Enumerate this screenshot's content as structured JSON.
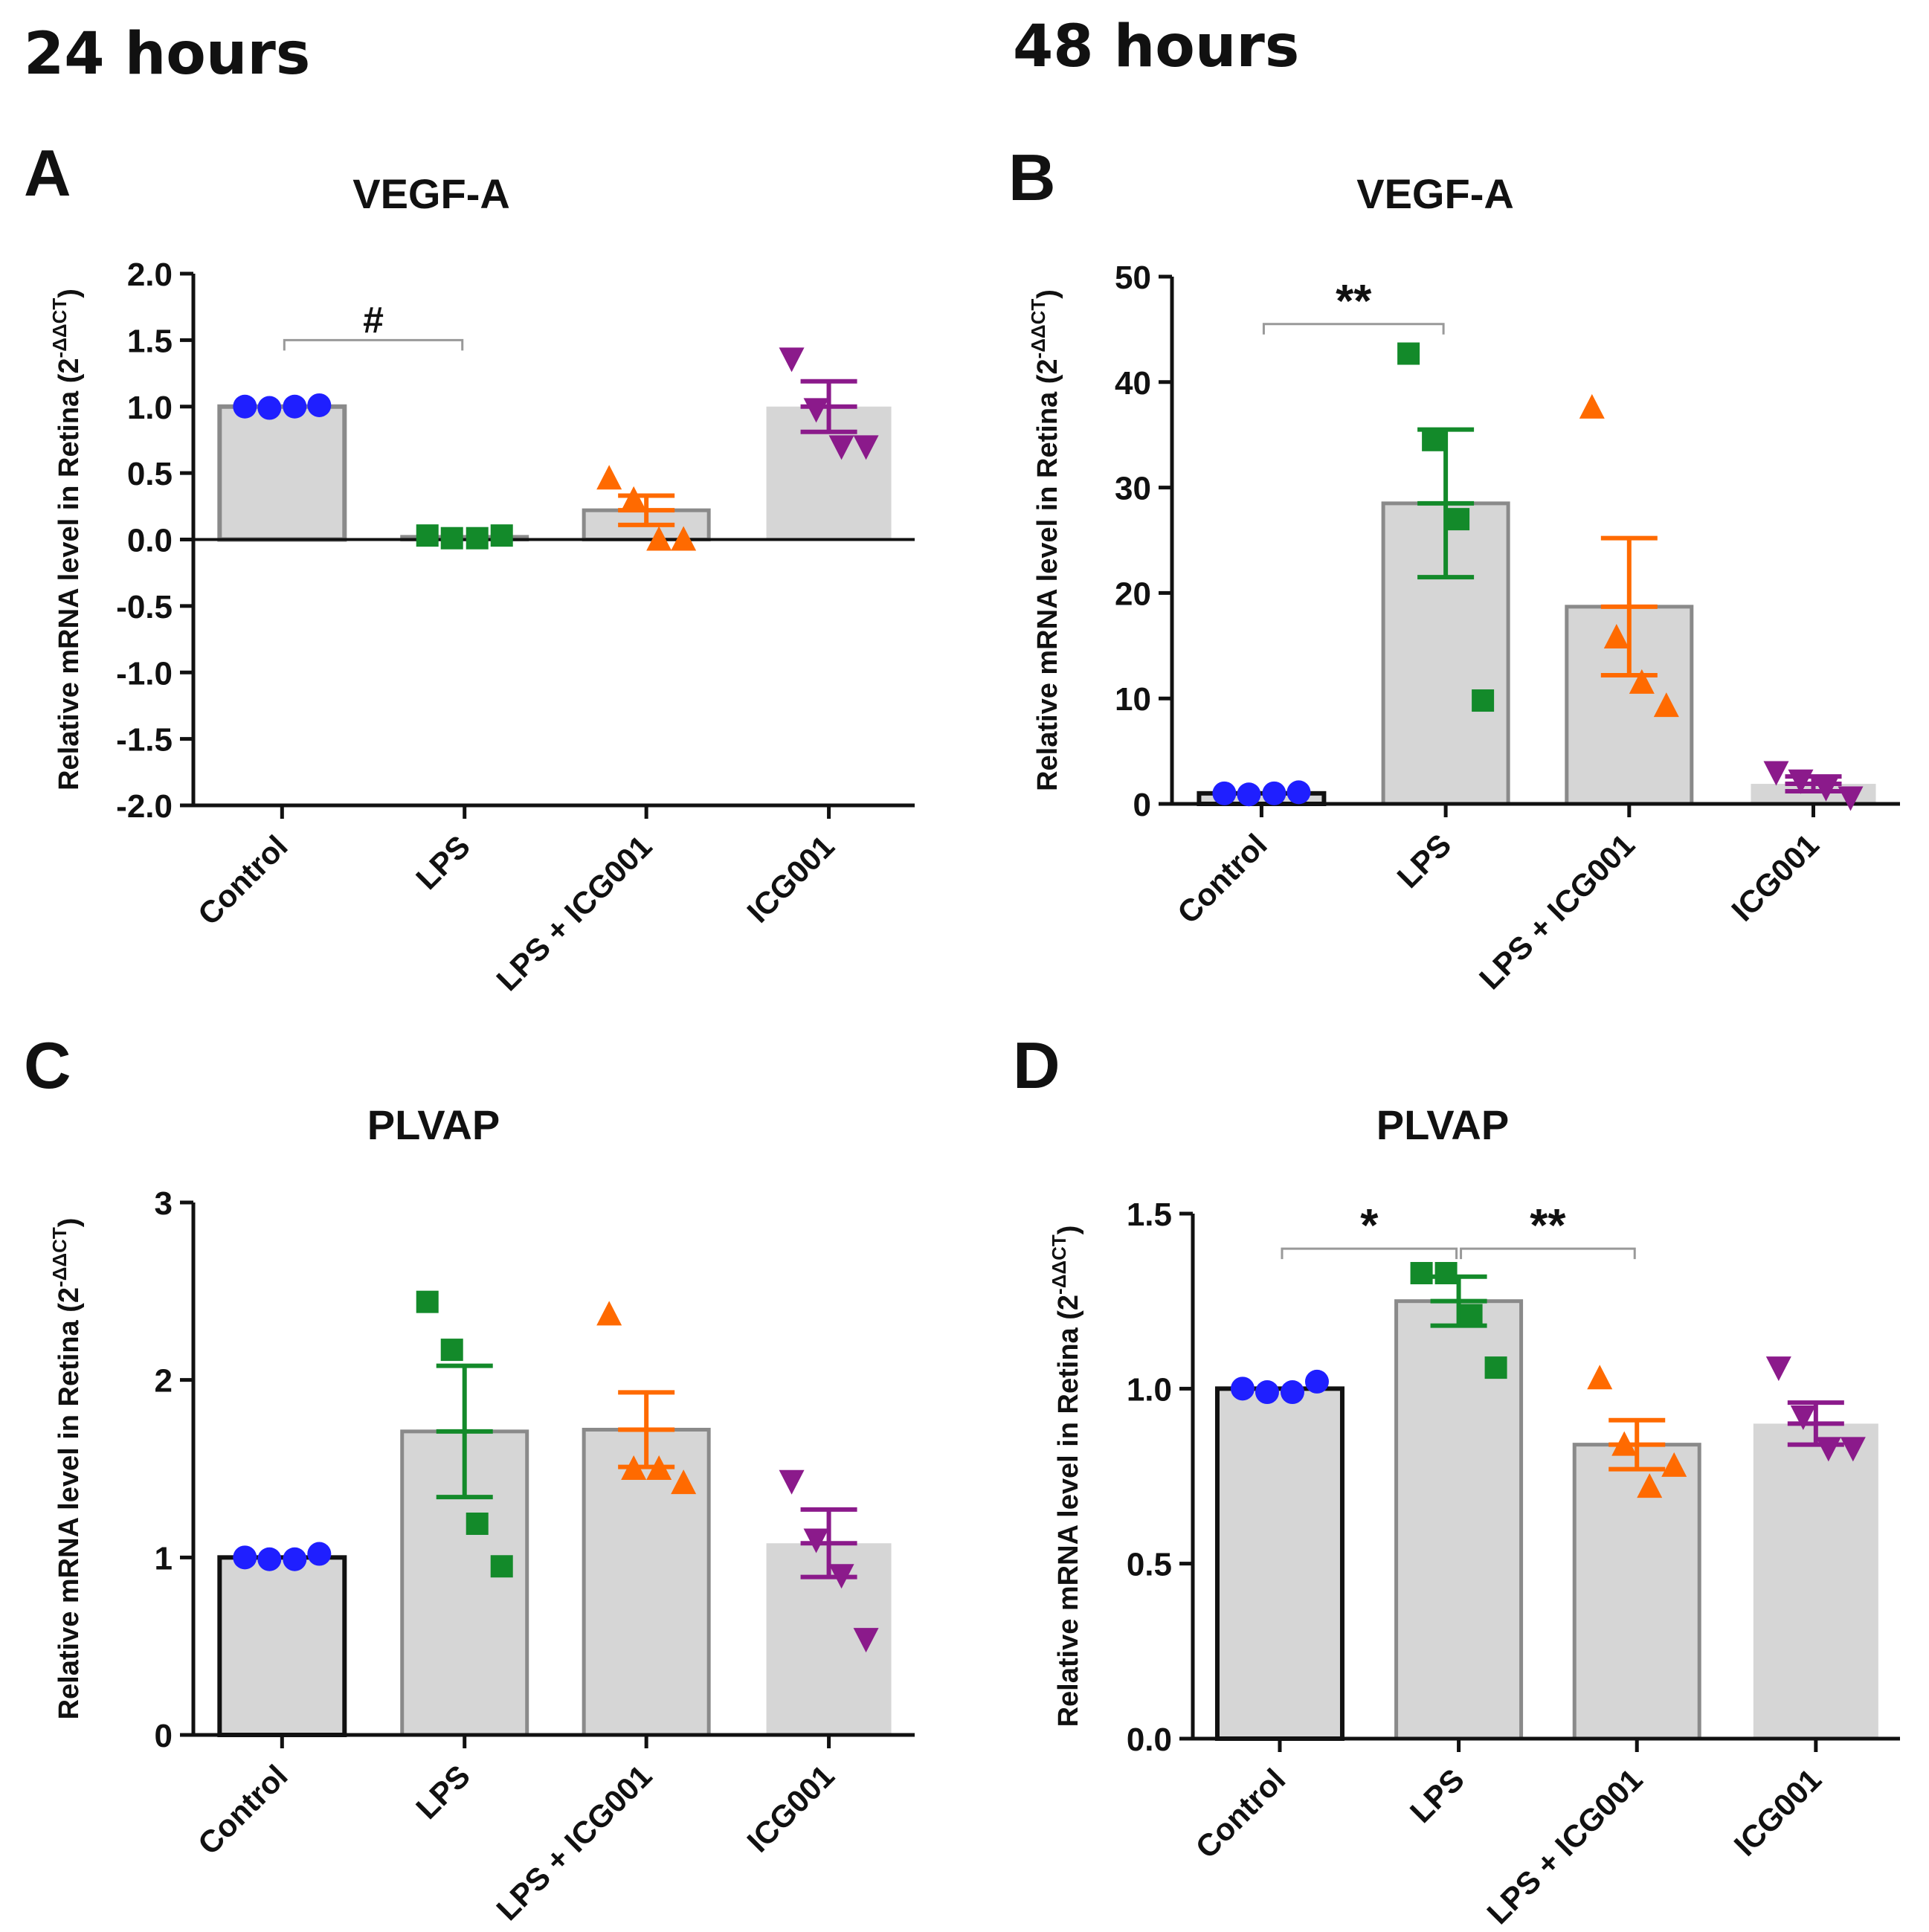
{
  "headers": {
    "left": "24 hours",
    "right": "48 hours"
  },
  "y_axis_label_main": "Relative mRNA level in Retina (2",
  "y_axis_label_sup": "-ΔΔCT",
  "y_axis_label_close": ")",
  "colors": {
    "Control": "#1f1fff",
    "LPS": "#138a2a",
    "LPS + ICG001": "#ff6a00",
    "ICG001": "#8b1a8b",
    "bar_fill": "#d6d6d6",
    "bar_edge": "#8a8a8a",
    "control_edge": "#111111"
  },
  "chart_data": [
    {
      "panel": "A",
      "type": "bar",
      "title": "VEGF-A",
      "time": "24 hours",
      "categories": [
        "Control",
        "LPS",
        "LPS + ICG001",
        "ICG001"
      ],
      "values": [
        1.0,
        0.02,
        0.22,
        1.0
      ],
      "sem": [
        0.0,
        0.0,
        0.11,
        0.19
      ],
      "points": [
        [
          1.0,
          0.99,
          1.0,
          1.01
        ],
        [
          0.03,
          0.01,
          0.01,
          0.03
        ],
        [
          0.46,
          0.3,
          0.0,
          0.0
        ],
        [
          1.36,
          0.98,
          0.7,
          0.7
        ]
      ],
      "marker": [
        "circle",
        "square",
        "triangle-up",
        "triangle-down"
      ],
      "ylim": [
        -2.0,
        2.0
      ],
      "yticks": [
        -2.0,
        -1.5,
        -1.0,
        -0.5,
        0.0,
        0.5,
        1.0,
        1.5,
        2.0
      ],
      "ytick_labels": [
        "-2.0",
        "-1.5",
        "-1.0",
        "-0.5",
        "0.0",
        "0.5",
        "1.0",
        "1.5",
        "2.0"
      ],
      "zero_line": true,
      "control_bar_outlined": false,
      "significance": [
        {
          "from": 0,
          "to": 1,
          "y": 1.5,
          "label": "#"
        }
      ]
    },
    {
      "panel": "B",
      "type": "bar",
      "title": "VEGF-A",
      "time": "48 hours",
      "categories": [
        "Control",
        "LPS",
        "LPS + ICG001",
        "ICG001"
      ],
      "values": [
        1.0,
        28.5,
        18.7,
        1.9
      ],
      "sem": [
        0.0,
        7.0,
        6.5,
        0.7
      ],
      "points": [
        [
          1.0,
          0.9,
          1.0,
          1.1
        ],
        [
          42.7,
          34.5,
          27.0,
          9.8
        ],
        [
          37.6,
          15.8,
          11.5,
          9.3
        ],
        [
          3.0,
          2.2,
          1.5,
          0.6
        ]
      ],
      "marker": [
        "circle",
        "square",
        "triangle-up",
        "triangle-down"
      ],
      "ylim": [
        0,
        50
      ],
      "yticks": [
        0,
        10,
        20,
        30,
        40,
        50
      ],
      "ytick_labels": [
        "0",
        "10",
        "20",
        "30",
        "40",
        "50"
      ],
      "zero_line": false,
      "control_bar_outlined": true,
      "significance": [
        {
          "from": 0,
          "to": 1,
          "y": 45.5,
          "label": "**"
        }
      ]
    },
    {
      "panel": "C",
      "type": "bar",
      "title": "PLVAP",
      "time": "24 hours",
      "categories": [
        "Control",
        "LPS",
        "LPS + ICG001",
        "ICG001"
      ],
      "values": [
        1.0,
        1.71,
        1.72,
        1.08
      ],
      "sem": [
        0.0,
        0.37,
        0.21,
        0.19
      ],
      "points": [
        [
          1.0,
          0.99,
          0.99,
          1.02
        ],
        [
          2.44,
          2.17,
          1.19,
          0.95
        ],
        [
          2.37,
          1.5,
          1.5,
          1.42
        ],
        [
          1.43,
          1.1,
          0.9,
          0.54
        ]
      ],
      "marker": [
        "circle",
        "square",
        "triangle-up",
        "triangle-down"
      ],
      "ylim": [
        0,
        3
      ],
      "yticks": [
        0,
        1,
        2,
        3
      ],
      "ytick_labels": [
        "0",
        "1",
        "2",
        "3"
      ],
      "zero_line": false,
      "control_bar_outlined": true,
      "significance": []
    },
    {
      "panel": "D",
      "type": "bar",
      "title": "PLVAP",
      "time": "48 hours",
      "categories": [
        "Control",
        "LPS",
        "LPS + ICG001",
        "ICG001"
      ],
      "values": [
        1.0,
        1.25,
        0.84,
        0.9
      ],
      "sem": [
        0.0,
        0.07,
        0.07,
        0.06
      ],
      "points": [
        [
          1.0,
          0.99,
          0.99,
          1.02
        ],
        [
          1.33,
          1.33,
          1.21,
          1.06
        ],
        [
          1.03,
          0.84,
          0.72,
          0.78
        ],
        [
          1.06,
          0.92,
          0.83,
          0.83
        ]
      ],
      "marker": [
        "circle",
        "square",
        "triangle-up",
        "triangle-down"
      ],
      "ylim": [
        0.0,
        1.5
      ],
      "yticks": [
        0.0,
        0.5,
        1.0,
        1.5
      ],
      "ytick_labels": [
        "0.0",
        "0.5",
        "1.0",
        "1.5"
      ],
      "zero_line": false,
      "control_bar_outlined": true,
      "significance": [
        {
          "from": 0,
          "to": 1,
          "y": 1.4,
          "label": "*"
        },
        {
          "from": 1,
          "to": 2,
          "y": 1.4,
          "label": "**"
        }
      ]
    }
  ]
}
